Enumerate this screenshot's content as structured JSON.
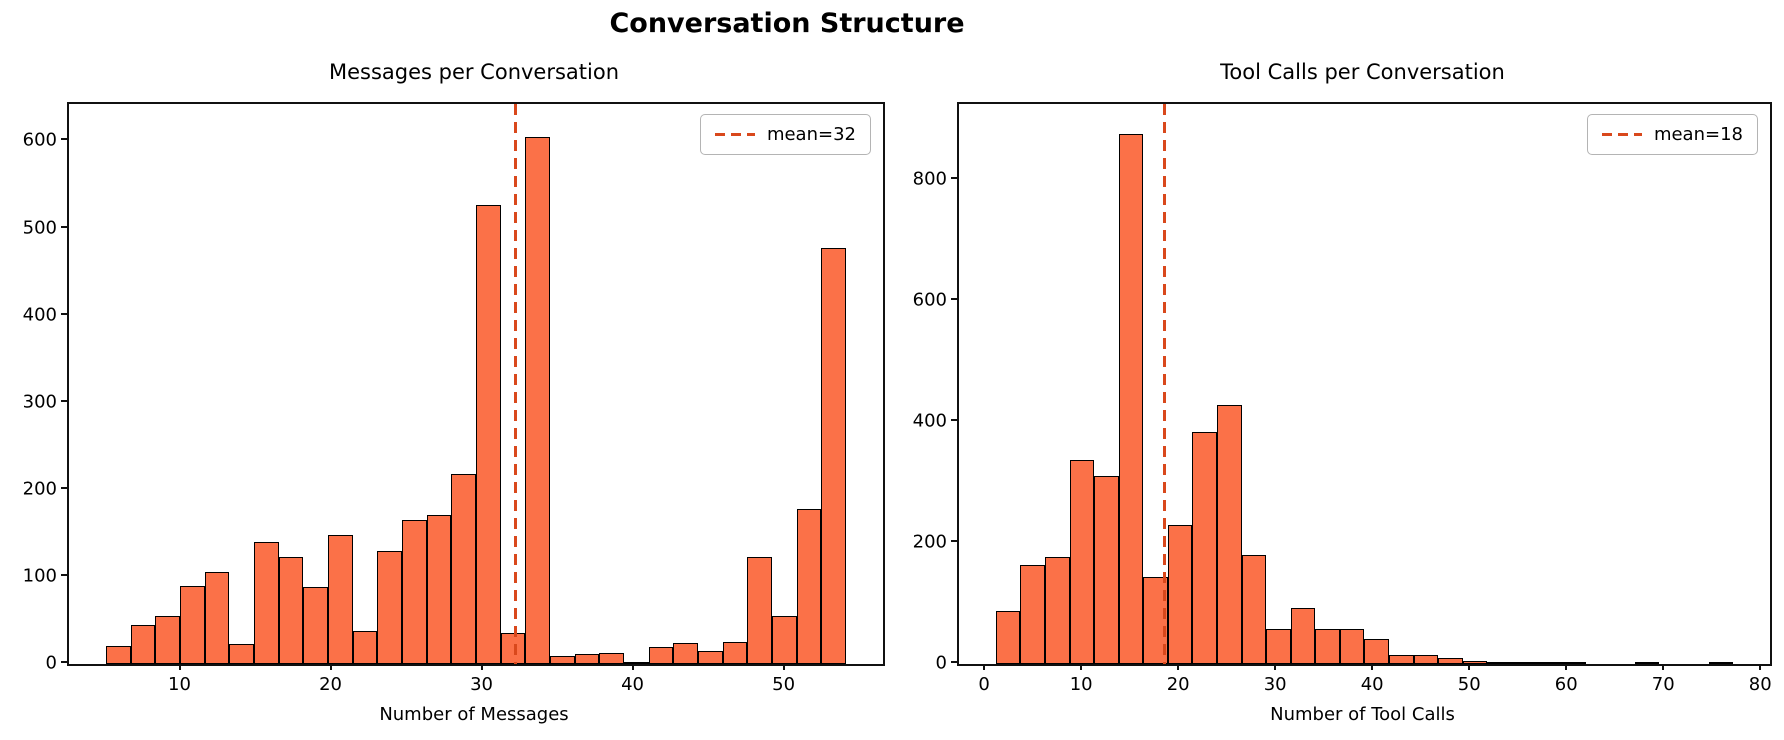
{
  "figure": {
    "title": "Conversation Structure"
  },
  "chart_data": [
    {
      "type": "bar",
      "subtype": "histogram",
      "title": "Messages per Conversation",
      "xlabel": "Number of Messages",
      "ylabel": "",
      "bin_start": 5.0,
      "bin_width": 1.6333,
      "counts": [
        21,
        45,
        55,
        90,
        106,
        23,
        140,
        123,
        88,
        148,
        38,
        130,
        165,
        171,
        218,
        527,
        36,
        605,
        9,
        11,
        13,
        2,
        19,
        24,
        15,
        25,
        123,
        55,
        178,
        478
      ],
      "xlim": [
        2.55,
        56.45
      ],
      "ylim": [
        0,
        643
      ],
      "xticks": [
        10,
        20,
        30,
        40,
        50
      ],
      "yticks": [
        0,
        100,
        200,
        300,
        400,
        500,
        600
      ],
      "grid": false,
      "mean_value": 32.1,
      "legend_label": "mean=32",
      "legend_position": "upper right",
      "colors": {
        "bar_fill": "#fb7148",
        "bar_edge": "#000000",
        "mean_line": "#d9481c"
      }
    },
    {
      "type": "bar",
      "subtype": "histogram",
      "title": "Tool Calls per Conversation",
      "xlabel": "Number of Tool Calls",
      "ylabel": "",
      "bin_start": 1.0,
      "bin_width": 2.5333,
      "counts": [
        87,
        163,
        177,
        337,
        310,
        875,
        143,
        230,
        383,
        427,
        180,
        58,
        92,
        57,
        57,
        42,
        15,
        15,
        10,
        5,
        3,
        2,
        3,
        1,
        0,
        0,
        1,
        0,
        0,
        1
      ],
      "xlim": [
        -2.8,
        80.8
      ],
      "ylim": [
        0,
        925
      ],
      "xticks": [
        0,
        10,
        20,
        30,
        40,
        50,
        60,
        70,
        80
      ],
      "yticks": [
        0,
        200,
        400,
        600,
        800
      ],
      "grid": false,
      "mean_value": 18.35,
      "legend_label": "mean=18",
      "legend_position": "upper right",
      "colors": {
        "bar_fill": "#fb7148",
        "bar_edge": "#000000",
        "mean_line": "#d9481c"
      }
    }
  ]
}
